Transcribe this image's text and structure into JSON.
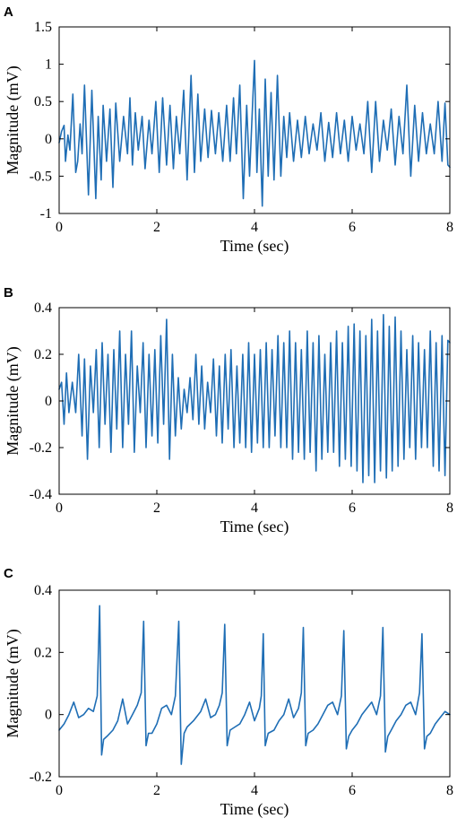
{
  "colors": {
    "line": "#1f6eb5",
    "axis": "#000000",
    "background": "#ffffff"
  },
  "chart_data": [
    {
      "type": "line",
      "panel": "A",
      "xlabel": "Time (sec)",
      "ylabel": "Magnitude (mV)",
      "xlim": [
        0,
        8
      ],
      "ylim": [
        -1,
        1.5
      ],
      "xticks": [
        0,
        2,
        4,
        6,
        8
      ],
      "xtick_labels": [
        "0",
        "2",
        "4",
        "6",
        "8"
      ],
      "yticks": [
        -1,
        -0.5,
        0,
        0.5,
        1,
        1.5
      ],
      "ytick_labels": [
        "-1",
        "-0.5",
        "0",
        "0.5",
        "1",
        "1.5"
      ],
      "grid": false,
      "series": [
        {
          "x": [
            0,
            0.05,
            0.1,
            0.13,
            0.18,
            0.22,
            0.28,
            0.34,
            0.38,
            0.43,
            0.47,
            0.52,
            0.6,
            0.67,
            0.75,
            0.8,
            0.86,
            0.9,
            0.97,
            1.04,
            1.1,
            1.16,
            1.24,
            1.32,
            1.4,
            1.45,
            1.5,
            1.56,
            1.62,
            1.7,
            1.76,
            1.84,
            1.9,
            1.98,
            2.05,
            2.12,
            2.2,
            2.27,
            2.34,
            2.4,
            2.47,
            2.55,
            2.62,
            2.7,
            2.77,
            2.84,
            2.9,
            2.98,
            3.05,
            3.12,
            3.2,
            3.27,
            3.35,
            3.43,
            3.5,
            3.57,
            3.63,
            3.7,
            3.77,
            3.84,
            3.9,
            3.95,
            4.0,
            4.05,
            4.1,
            4.16,
            4.22,
            4.28,
            4.34,
            4.4,
            4.47,
            4.54,
            4.6,
            4.66,
            4.72,
            4.8,
            4.88,
            4.96,
            5.04,
            5.12,
            5.2,
            5.28,
            5.36,
            5.44,
            5.52,
            5.6,
            5.68,
            5.76,
            5.84,
            5.92,
            6.0,
            6.08,
            6.16,
            6.24,
            6.32,
            6.4,
            6.48,
            6.56,
            6.64,
            6.72,
            6.8,
            6.88,
            6.96,
            7.04,
            7.12,
            7.2,
            7.28,
            7.36,
            7.44,
            7.52,
            7.6,
            7.68,
            7.76,
            7.84,
            7.9,
            7.96,
            8.0
          ],
          "y": [
            -0.05,
            0.1,
            0.18,
            -0.3,
            0.05,
            -0.15,
            0.6,
            -0.45,
            -0.3,
            0.2,
            -0.2,
            0.72,
            -0.75,
            0.65,
            -0.8,
            0.3,
            -0.55,
            0.45,
            -0.3,
            0.4,
            -0.65,
            0.48,
            -0.3,
            0.3,
            -0.2,
            0.55,
            -0.35,
            0.35,
            -0.15,
            0.3,
            -0.4,
            0.25,
            -0.2,
            0.5,
            -0.45,
            0.55,
            -0.35,
            0.45,
            -0.4,
            0.3,
            -0.2,
            0.65,
            -0.55,
            0.85,
            -0.45,
            0.6,
            -0.3,
            0.4,
            -0.25,
            0.38,
            -0.2,
            0.35,
            -0.3,
            0.45,
            -0.3,
            0.55,
            -0.2,
            0.72,
            -0.8,
            0.45,
            -0.5,
            0.3,
            1.05,
            -0.45,
            0.4,
            -0.9,
            0.8,
            -0.5,
            0.62,
            -0.55,
            0.85,
            -0.5,
            0.3,
            -0.25,
            0.35,
            -0.3,
            0.25,
            -0.25,
            0.3,
            -0.2,
            0.2,
            -0.15,
            0.35,
            -0.3,
            0.22,
            -0.25,
            0.35,
            -0.2,
            0.25,
            -0.3,
            0.3,
            -0.15,
            0.2,
            -0.2,
            0.5,
            -0.45,
            0.5,
            -0.3,
            0.25,
            -0.15,
            0.4,
            -0.35,
            0.3,
            -0.2,
            0.72,
            -0.5,
            0.45,
            -0.3,
            0.35,
            -0.2,
            0.2,
            -0.2,
            0.5,
            -0.3,
            0.48,
            -0.35,
            -0.38
          ]
        }
      ]
    },
    {
      "type": "line",
      "panel": "B",
      "xlabel": "Time (sec)",
      "ylabel": "Magnitude (mV)",
      "xlim": [
        0,
        8
      ],
      "ylim": [
        -0.4,
        0.4
      ],
      "xticks": [
        0,
        2,
        4,
        6,
        8
      ],
      "xtick_labels": [
        "0",
        "2",
        "4",
        "6",
        "8"
      ],
      "yticks": [
        -0.4,
        -0.2,
        0,
        0.2,
        0.4
      ],
      "ytick_labels": [
        "-0.4",
        "-0.2",
        "0",
        "0.2",
        "0.4"
      ],
      "grid": false,
      "series": [
        {
          "x": [
            0,
            0.05,
            0.1,
            0.15,
            0.2,
            0.27,
            0.34,
            0.4,
            0.47,
            0.52,
            0.58,
            0.64,
            0.7,
            0.76,
            0.82,
            0.88,
            0.94,
            1.0,
            1.06,
            1.12,
            1.18,
            1.24,
            1.3,
            1.36,
            1.42,
            1.48,
            1.54,
            1.6,
            1.66,
            1.72,
            1.78,
            1.84,
            1.9,
            1.96,
            2.02,
            2.08,
            2.14,
            2.2,
            2.26,
            2.32,
            2.38,
            2.44,
            2.5,
            2.56,
            2.62,
            2.68,
            2.74,
            2.8,
            2.86,
            2.92,
            2.98,
            3.04,
            3.1,
            3.16,
            3.22,
            3.28,
            3.34,
            3.4,
            3.46,
            3.52,
            3.58,
            3.64,
            3.7,
            3.76,
            3.82,
            3.88,
            3.94,
            4.0,
            4.06,
            4.12,
            4.18,
            4.24,
            4.3,
            4.36,
            4.42,
            4.48,
            4.54,
            4.6,
            4.66,
            4.72,
            4.78,
            4.84,
            4.9,
            4.96,
            5.02,
            5.08,
            5.14,
            5.2,
            5.26,
            5.32,
            5.38,
            5.44,
            5.5,
            5.56,
            5.62,
            5.68,
            5.74,
            5.8,
            5.86,
            5.92,
            5.98,
            6.04,
            6.1,
            6.16,
            6.22,
            6.28,
            6.34,
            6.4,
            6.46,
            6.52,
            6.58,
            6.64,
            6.7,
            6.76,
            6.82,
            6.88,
            6.94,
            7.0,
            7.06,
            7.12,
            7.18,
            7.24,
            7.3,
            7.36,
            7.42,
            7.48,
            7.54,
            7.6,
            7.66,
            7.72,
            7.78,
            7.84,
            7.9,
            7.96,
            8.0
          ],
          "y": [
            0.05,
            0.08,
            -0.1,
            0.12,
            -0.05,
            0.08,
            -0.05,
            0.2,
            -0.15,
            0.18,
            -0.25,
            0.15,
            -0.05,
            0.22,
            -0.2,
            0.25,
            -0.1,
            0.2,
            -0.22,
            0.22,
            -0.12,
            0.3,
            -0.2,
            0.2,
            -0.1,
            0.3,
            -0.22,
            0.15,
            -0.05,
            0.25,
            -0.2,
            0.2,
            -0.15,
            0.22,
            -0.18,
            0.28,
            -0.1,
            0.35,
            -0.25,
            0.2,
            -0.15,
            0.1,
            -0.12,
            0.05,
            -0.05,
            0.1,
            -0.08,
            0.2,
            -0.1,
            0.15,
            -0.12,
            0.08,
            -0.05,
            0.18,
            -0.15,
            0.15,
            -0.18,
            0.2,
            -0.12,
            0.22,
            -0.2,
            0.15,
            -0.18,
            0.2,
            -0.2,
            0.25,
            -0.22,
            0.2,
            -0.18,
            0.22,
            -0.2,
            0.25,
            -0.2,
            0.22,
            -0.15,
            0.28,
            -0.2,
            0.25,
            -0.2,
            0.3,
            -0.25,
            0.25,
            -0.22,
            0.22,
            -0.25,
            0.3,
            -0.22,
            0.25,
            -0.3,
            0.28,
            -0.25,
            0.2,
            -0.22,
            0.25,
            -0.22,
            0.3,
            -0.28,
            0.25,
            -0.25,
            0.32,
            -0.28,
            0.33,
            -0.3,
            0.3,
            -0.35,
            0.28,
            -0.32,
            0.35,
            -0.35,
            0.3,
            -0.3,
            0.37,
            -0.33,
            0.32,
            -0.3,
            0.36,
            -0.28,
            0.3,
            -0.25,
            0.22,
            -0.2,
            0.28,
            -0.25,
            0.25,
            -0.2,
            0.22,
            -0.2,
            0.3,
            -0.28,
            0.25,
            -0.3,
            0.28,
            -0.32,
            0.26,
            0.25
          ]
        }
      ]
    },
    {
      "type": "line",
      "panel": "C",
      "xlabel": "Time (sec)",
      "ylabel": "Magnitude (mV)",
      "xlim": [
        0,
        8
      ],
      "ylim": [
        -0.2,
        0.4
      ],
      "xticks": [
        0,
        2,
        4,
        6,
        8
      ],
      "xtick_labels": [
        "0",
        "2",
        "4",
        "6",
        "8"
      ],
      "yticks": [
        -0.2,
        0,
        0.2,
        0.4
      ],
      "ytick_labels": [
        "-0.2",
        "0",
        "0.2",
        "0.4"
      ],
      "grid": false,
      "series": [
        {
          "x": [
            0,
            0.1,
            0.2,
            0.3,
            0.4,
            0.5,
            0.6,
            0.7,
            0.78,
            0.83,
            0.87,
            0.91,
            0.98,
            1.1,
            1.2,
            1.3,
            1.4,
            1.5,
            1.6,
            1.68,
            1.73,
            1.78,
            1.83,
            1.9,
            2.0,
            2.1,
            2.2,
            2.3,
            2.38,
            2.45,
            2.5,
            2.56,
            2.62,
            2.75,
            2.9,
            3.0,
            3.1,
            3.2,
            3.28,
            3.34,
            3.39,
            3.44,
            3.5,
            3.6,
            3.7,
            3.8,
            3.9,
            4.0,
            4.1,
            4.14,
            4.18,
            4.22,
            4.28,
            4.4,
            4.5,
            4.6,
            4.7,
            4.8,
            4.9,
            4.96,
            5.0,
            5.05,
            5.1,
            5.2,
            5.3,
            5.4,
            5.5,
            5.6,
            5.7,
            5.78,
            5.83,
            5.88,
            5.93,
            6.0,
            6.1,
            6.2,
            6.3,
            6.4,
            6.5,
            6.58,
            6.63,
            6.68,
            6.73,
            6.8,
            6.9,
            7.0,
            7.1,
            7.2,
            7.3,
            7.38,
            7.43,
            7.48,
            7.53,
            7.6,
            7.7,
            7.8,
            7.9,
            8.0
          ],
          "y": [
            -0.05,
            -0.03,
            0.0,
            0.04,
            -0.01,
            0.0,
            0.02,
            0.01,
            0.06,
            0.35,
            -0.13,
            -0.08,
            -0.07,
            -0.05,
            -0.02,
            0.05,
            -0.03,
            0.0,
            0.03,
            0.07,
            0.3,
            -0.1,
            -0.06,
            -0.06,
            -0.03,
            0.02,
            0.03,
            0.0,
            0.06,
            0.3,
            -0.16,
            -0.06,
            -0.04,
            -0.02,
            0.01,
            0.05,
            -0.01,
            0.0,
            0.03,
            0.07,
            0.29,
            -0.1,
            -0.05,
            -0.04,
            -0.03,
            0.0,
            0.04,
            -0.02,
            0.02,
            0.06,
            0.26,
            -0.1,
            -0.06,
            -0.05,
            -0.02,
            0.0,
            0.05,
            -0.01,
            0.02,
            0.07,
            0.28,
            -0.1,
            -0.06,
            -0.05,
            -0.03,
            0.0,
            0.03,
            0.04,
            0.0,
            0.06,
            0.27,
            -0.11,
            -0.07,
            -0.05,
            -0.03,
            0.0,
            0.02,
            0.04,
            0.0,
            0.06,
            0.28,
            -0.12,
            -0.07,
            -0.05,
            -0.02,
            0.0,
            0.03,
            0.04,
            0.0,
            0.07,
            0.26,
            -0.11,
            -0.07,
            -0.06,
            -0.03,
            -0.01,
            0.01,
            0.0
          ]
        }
      ]
    }
  ]
}
